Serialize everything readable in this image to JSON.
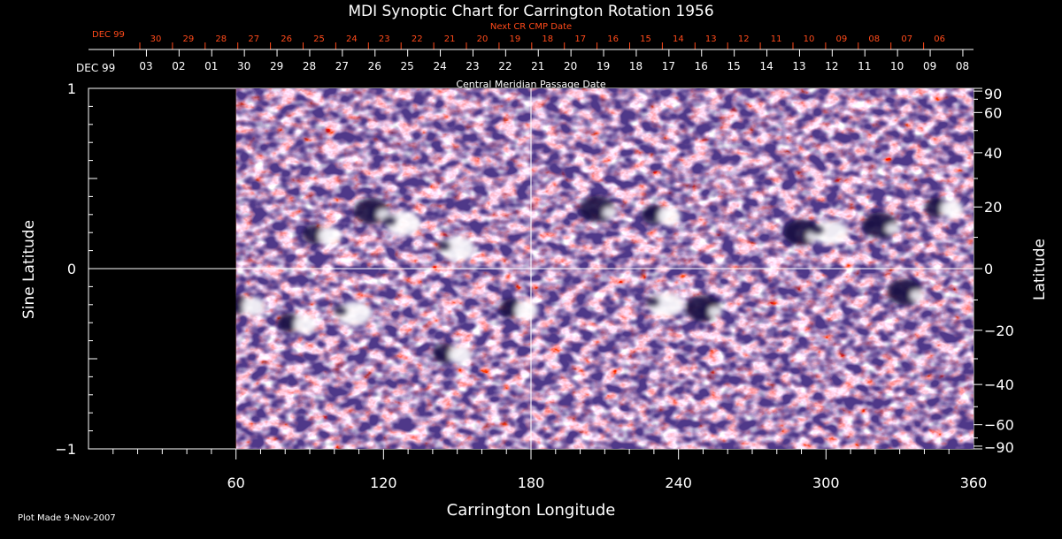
{
  "chart_data": {
    "type": "heatmap",
    "title": "MDI Synoptic Chart for Carrington Rotation 1956",
    "xlabel": "Carrington Longitude",
    "ylabel": "Sine Latitude",
    "ylabel_right": "Latitude",
    "xlim": [
      0,
      360
    ],
    "ylim": [
      -1,
      1
    ],
    "x_major_ticks": [
      60,
      120,
      180,
      240,
      300,
      360
    ],
    "y_left_ticks": [
      {
        "value": 1,
        "label": "1"
      },
      {
        "value": 0,
        "label": "0"
      },
      {
        "value": -1,
        "label": "−1"
      }
    ],
    "y_right_ticks": [
      {
        "deg": 90,
        "label": "90"
      },
      {
        "deg": 60,
        "label": "60"
      },
      {
        "deg": 40,
        "label": "40"
      },
      {
        "deg": 20,
        "label": "20"
      },
      {
        "deg": 0,
        "label": "0"
      },
      {
        "deg": -20,
        "label": "−20"
      },
      {
        "deg": -40,
        "label": "−40"
      },
      {
        "deg": -60,
        "label": "−60"
      },
      {
        "deg": -90,
        "label": "−90"
      }
    ],
    "data_coverage_start_longitude": 60,
    "date_axis": {
      "title": "Central Meridian Passage Date",
      "month_label": "DEC 99",
      "labels": [
        "03",
        "02",
        "01",
        "30",
        "29",
        "28",
        "27",
        "26",
        "25",
        "24",
        "23",
        "22",
        "21",
        "20",
        "19",
        "18",
        "17",
        "16",
        "15",
        "14",
        "13",
        "12",
        "11",
        "10",
        "09",
        "08"
      ]
    },
    "next_date_axis": {
      "title": "Next CR CMP Date",
      "month_label": "DEC 99",
      "labels": [
        "30",
        "29",
        "28",
        "27",
        "26",
        "25",
        "24",
        "23",
        "22",
        "21",
        "20",
        "19",
        "18",
        "17",
        "16",
        "15",
        "14",
        "13",
        "12",
        "11",
        "10",
        "09",
        "08",
        "07",
        "06"
      ]
    },
    "active_regions": [
      {
        "lon": 95,
        "sinlat": 0.19,
        "polarity": "mixed"
      },
      {
        "lon": 115,
        "sinlat": 0.32,
        "polarity": "negative"
      },
      {
        "lon": 128,
        "sinlat": 0.25,
        "polarity": "positive"
      },
      {
        "lon": 150,
        "sinlat": 0.11,
        "polarity": "positive"
      },
      {
        "lon": 207,
        "sinlat": 0.33,
        "polarity": "negative"
      },
      {
        "lon": 233,
        "sinlat": 0.3,
        "polarity": "mixed"
      },
      {
        "lon": 290,
        "sinlat": 0.2,
        "polarity": "negative"
      },
      {
        "lon": 302,
        "sinlat": 0.2,
        "polarity": "positive"
      },
      {
        "lon": 322,
        "sinlat": 0.24,
        "polarity": "negative"
      },
      {
        "lon": 348,
        "sinlat": 0.34,
        "polarity": "mixed"
      },
      {
        "lon": 64,
        "sinlat": -0.2,
        "polarity": "mixed"
      },
      {
        "lon": 85,
        "sinlat": -0.3,
        "polarity": "mixed"
      },
      {
        "lon": 108,
        "sinlat": -0.25,
        "polarity": "positive"
      },
      {
        "lon": 148,
        "sinlat": -0.47,
        "polarity": "mixed"
      },
      {
        "lon": 175,
        "sinlat": -0.22,
        "polarity": "mixed"
      },
      {
        "lon": 235,
        "sinlat": -0.2,
        "polarity": "positive"
      },
      {
        "lon": 250,
        "sinlat": -0.22,
        "polarity": "negative"
      },
      {
        "lon": 332,
        "sinlat": -0.13,
        "polarity": "negative"
      }
    ],
    "colors": {
      "background": "#000000",
      "field_mid": "#ff5010",
      "field_positive": "#ffffff",
      "field_negative": "#140a40",
      "date_axis_red": "#ff4a1a"
    }
  },
  "footer": {
    "plot_made": "Plot Made  9-Nov-2007"
  }
}
